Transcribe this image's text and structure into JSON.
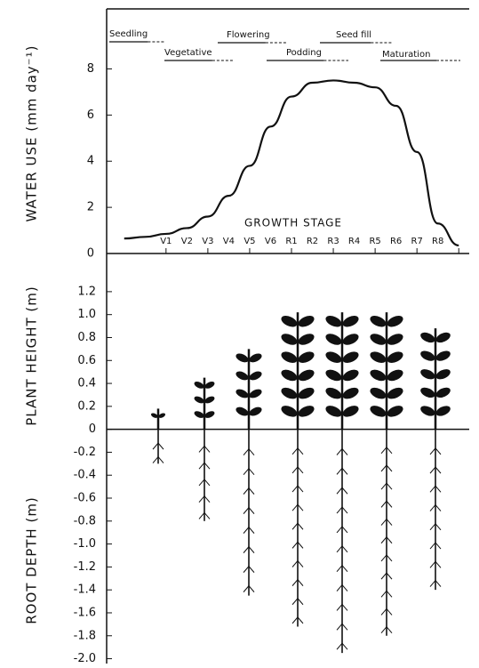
{
  "chart_data": [
    {
      "type": "line",
      "y_label": "WATER USE (mm day⁻¹)",
      "annotation": "GROWTH STAGE",
      "phases": [
        "Seedling",
        "Vegetative",
        "Flowering",
        "Podding",
        "Seed fill",
        "Maturation"
      ],
      "categories": [
        null,
        null,
        "V1",
        "V2",
        "V3",
        "V4",
        "V5",
        "V6",
        "R1",
        "R2",
        "R3",
        "R4",
        "R5",
        "R6",
        "R7",
        "R8",
        null
      ],
      "values": [
        0.65,
        0.72,
        0.85,
        1.1,
        1.6,
        2.5,
        3.8,
        5.5,
        6.8,
        7.4,
        7.5,
        7.4,
        7.2,
        6.4,
        4.4,
        1.3,
        0.35
      ],
      "color": "#111111",
      "ylim": [
        0,
        10.6
      ],
      "yticks": [
        0,
        2,
        4,
        6,
        8
      ]
    },
    {
      "type": "bar",
      "y_label_top": "PLANT HEIGHT (m)",
      "y_label_bottom": "ROOT DEPTH (m)",
      "categories": [
        null,
        null,
        null,
        null,
        null,
        null,
        null
      ],
      "series": [
        {
          "color": "#111111",
          "values": [
            0.18,
            0.45,
            0.7,
            1.02,
            1.02,
            1.02,
            0.88
          ]
        },
        {
          "color": "#111111",
          "values": [
            -0.3,
            -0.8,
            -1.45,
            -1.72,
            -1.95,
            -1.8,
            -1.4
          ]
        }
      ],
      "ylim": [
        -2.05,
        1.3
      ],
      "yticks": [
        {
          "value": 1.2,
          "label": "1.2"
        },
        {
          "value": 1,
          "label": "1.0"
        },
        0.8,
        0.6,
        0.4,
        0.2,
        0,
        -0.2,
        -0.4,
        -0.6,
        -0.8,
        {
          "value": -1,
          "label": "-1.0"
        },
        -1.2,
        -1.4,
        -1.6,
        -1.8,
        {
          "value": -2,
          "label": "-2.0"
        }
      ]
    }
  ]
}
